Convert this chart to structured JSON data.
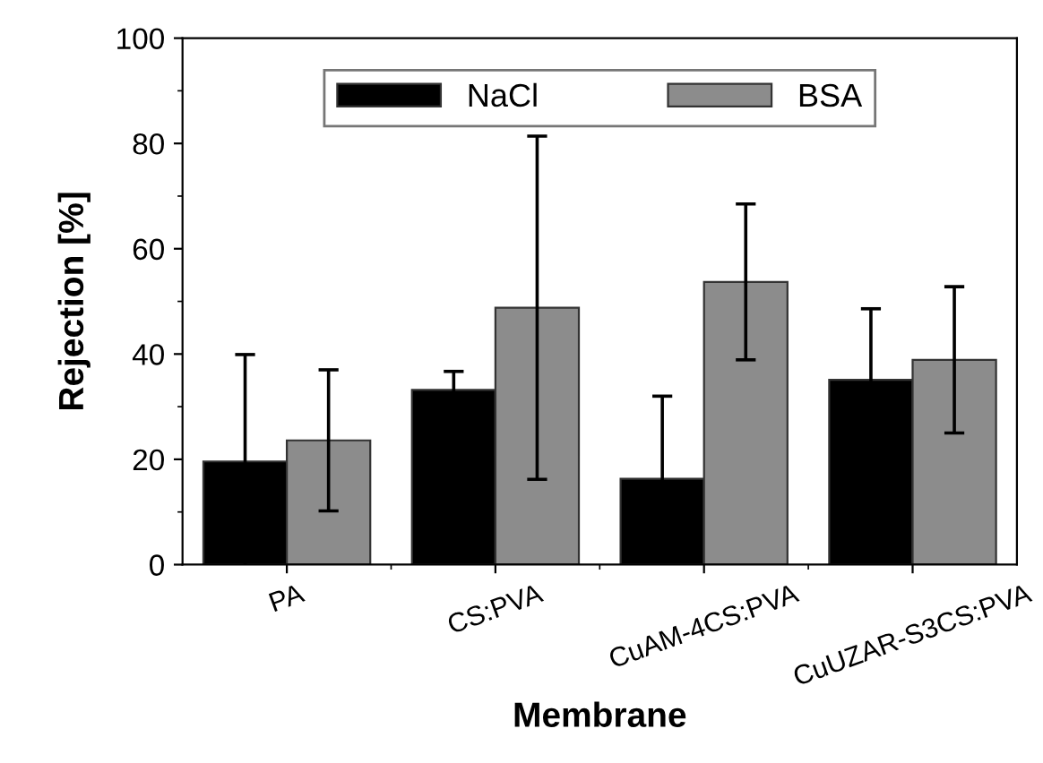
{
  "chart_data": {
    "type": "bar",
    "xlabel": "Membrane",
    "ylabel": "Rejection [%]",
    "categories": [
      "PA",
      "CS:PVA",
      "CuAM-4CS:PVA",
      "CuUZAR-S3CS:PVA"
    ],
    "series": [
      {
        "name": "NaCl",
        "color": "#000000",
        "values": [
          19.6,
          33.2,
          16.3,
          35.1
        ],
        "errors": [
          20.3,
          3.5,
          15.7,
          13.5
        ]
      },
      {
        "name": "BSA",
        "color": "#8c8c8c",
        "values": [
          23.6,
          48.8,
          53.7,
          38.9
        ],
        "errors": [
          13.4,
          32.6,
          14.8,
          13.9
        ]
      }
    ],
    "ylim": [
      0,
      100
    ],
    "yticks": [
      0,
      20,
      40,
      60,
      80,
      100
    ],
    "grid": false,
    "legend": "top"
  }
}
